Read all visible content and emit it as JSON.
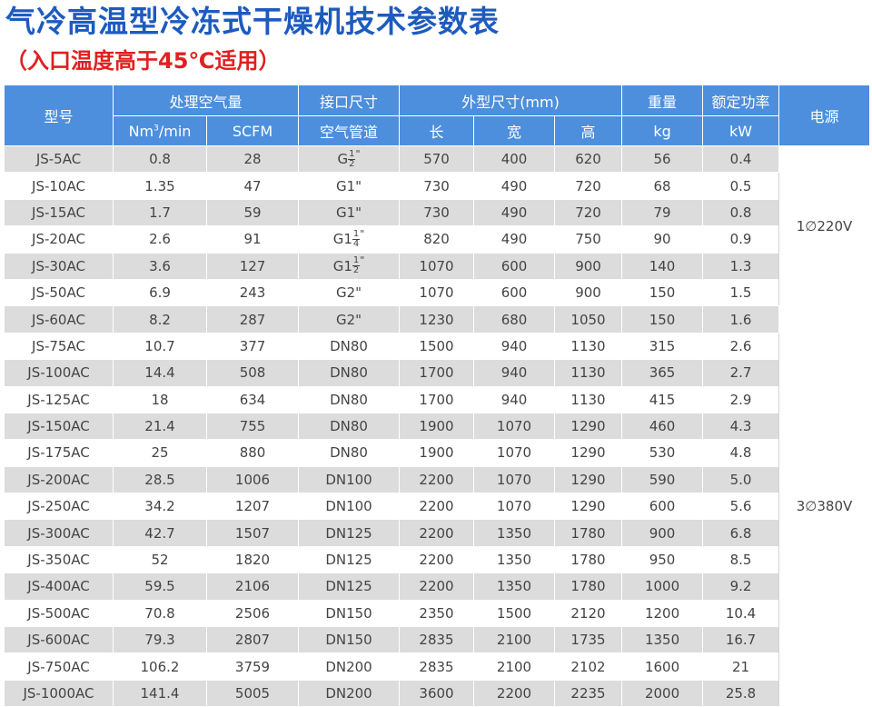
{
  "title": "气冷高温型冷冻式干燥机技术参数表",
  "subtitle": "（入口温度高于45℃适用）",
  "table": {
    "headers": {
      "model": "型号",
      "capacity": "处理空气量",
      "cap_nm3_base": "Nm",
      "cap_nm3_sup": "3",
      "cap_nm3_tail": "/min",
      "cap_scfm": "SCFM",
      "connection": "接口尺寸",
      "connection_sub": "空气管道",
      "dimensions": "外型尺寸(mm)",
      "length": "长",
      "width": "宽",
      "height": "高",
      "weight": "重量",
      "weight_unit": "kg",
      "power_rating": "额定功率",
      "power_unit": "kW",
      "supply": "电源"
    },
    "supply_groups": [
      {
        "label": "1∅220V",
        "rows": 6
      },
      {
        "label": "3∅380V",
        "rows": 15
      }
    ],
    "rows": [
      {
        "model": "JS-5AC",
        "nm3": "0.8",
        "scfm": "28",
        "pipe": {
          "prefix": "G",
          "num": "1",
          "den": "2"
        },
        "l": "570",
        "w": "400",
        "h": "620",
        "kg": "56",
        "kw": "0.4"
      },
      {
        "model": "JS-10AC",
        "nm3": "1.35",
        "scfm": "47",
        "pipe": "G1\"",
        "l": "730",
        "w": "490",
        "h": "720",
        "kg": "68",
        "kw": "0.5"
      },
      {
        "model": "JS-15AC",
        "nm3": "1.7",
        "scfm": "59",
        "pipe": "G1\"",
        "l": "730",
        "w": "490",
        "h": "720",
        "kg": "79",
        "kw": "0.8"
      },
      {
        "model": "JS-20AC",
        "nm3": "2.6",
        "scfm": "91",
        "pipe": {
          "prefix": "G1",
          "num": "1",
          "den": "4"
        },
        "l": "820",
        "w": "490",
        "h": "750",
        "kg": "90",
        "kw": "0.9"
      },
      {
        "model": "JS-30AC",
        "nm3": "3.6",
        "scfm": "127",
        "pipe": {
          "prefix": "G1",
          "num": "1",
          "den": "2"
        },
        "l": "1070",
        "w": "600",
        "h": "900",
        "kg": "140",
        "kw": "1.3"
      },
      {
        "model": "JS-50AC",
        "nm3": "6.9",
        "scfm": "243",
        "pipe": "G2\"",
        "l": "1070",
        "w": "600",
        "h": "900",
        "kg": "150",
        "kw": "1.5"
      },
      {
        "model": "JS-60AC",
        "nm3": "8.2",
        "scfm": "287",
        "pipe": "G2\"",
        "l": "1230",
        "w": "680",
        "h": "1050",
        "kg": "150",
        "kw": "1.6"
      },
      {
        "model": "JS-75AC",
        "nm3": "10.7",
        "scfm": "377",
        "pipe": "DN80",
        "l": "1500",
        "w": "940",
        "h": "1130",
        "kg": "315",
        "kw": "2.6"
      },
      {
        "model": "JS-100AC",
        "nm3": "14.4",
        "scfm": "508",
        "pipe": "DN80",
        "l": "1700",
        "w": "940",
        "h": "1130",
        "kg": "365",
        "kw": "2.7"
      },
      {
        "model": "JS-125AC",
        "nm3": "18",
        "scfm": "634",
        "pipe": "DN80",
        "l": "1700",
        "w": "940",
        "h": "1130",
        "kg": "415",
        "kw": "2.9"
      },
      {
        "model": "JS-150AC",
        "nm3": "21.4",
        "scfm": "755",
        "pipe": "DN80",
        "l": "1900",
        "w": "1070",
        "h": "1290",
        "kg": "460",
        "kw": "4.3"
      },
      {
        "model": "JS-175AC",
        "nm3": "25",
        "scfm": "880",
        "pipe": "DN80",
        "l": "1900",
        "w": "1070",
        "h": "1290",
        "kg": "530",
        "kw": "4.8"
      },
      {
        "model": "JS-200AC",
        "nm3": "28.5",
        "scfm": "1006",
        "pipe": "DN100",
        "l": "2200",
        "w": "1070",
        "h": "1290",
        "kg": "590",
        "kw": "5.0"
      },
      {
        "model": "JS-250AC",
        "nm3": "34.2",
        "scfm": "1207",
        "pipe": "DN100",
        "l": "2200",
        "w": "1070",
        "h": "1290",
        "kg": "600",
        "kw": "5.6"
      },
      {
        "model": "JS-300AC",
        "nm3": "42.7",
        "scfm": "1507",
        "pipe": "DN125",
        "l": "2200",
        "w": "1350",
        "h": "1780",
        "kg": "900",
        "kw": "6.8"
      },
      {
        "model": "JS-350AC",
        "nm3": "52",
        "scfm": "1820",
        "pipe": "DN125",
        "l": "2200",
        "w": "1350",
        "h": "1780",
        "kg": "950",
        "kw": "8.5"
      },
      {
        "model": "JS-400AC",
        "nm3": "59.5",
        "scfm": "2106",
        "pipe": "DN125",
        "l": "2200",
        "w": "1350",
        "h": "1780",
        "kg": "1000",
        "kw": "9.2"
      },
      {
        "model": "JS-500AC",
        "nm3": "70.8",
        "scfm": "2506",
        "pipe": "DN150",
        "l": "2350",
        "w": "1500",
        "h": "2120",
        "kg": "1200",
        "kw": "10.4"
      },
      {
        "model": "JS-600AC",
        "nm3": "79.3",
        "scfm": "2807",
        "pipe": "DN150",
        "l": "2835",
        "w": "2100",
        "h": "1735",
        "kg": "1350",
        "kw": "16.7"
      },
      {
        "model": "JS-750AC",
        "nm3": "106.2",
        "scfm": "3759",
        "pipe": "DN200",
        "l": "2835",
        "w": "2100",
        "h": "2102",
        "kg": "1600",
        "kw": "21"
      },
      {
        "model": "JS-1000AC",
        "nm3": "141.4",
        "scfm": "5005",
        "pipe": "DN200",
        "l": "3600",
        "w": "2200",
        "h": "2235",
        "kg": "2000",
        "kw": "25.8"
      }
    ]
  }
}
